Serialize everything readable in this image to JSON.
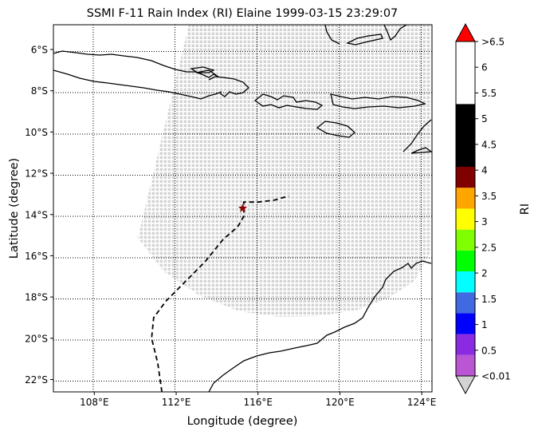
{
  "chart_data": {
    "type": "map",
    "title": "SSMI F-11 Rain Index (RI) Elaine 1999-03-15 23:29:07",
    "xlabel": "Longitude (degree)",
    "ylabel": "Latitude (degree)",
    "xlim": [
      106.0,
      124.5
    ],
    "ylim": [
      -22.6,
      -4.8
    ],
    "xticks": [
      108,
      112,
      116,
      120,
      124
    ],
    "xtick_labels": [
      "108°E",
      "112°E",
      "116°E",
      "120°E",
      "124°E"
    ],
    "yticks": [
      -6,
      -8,
      -10,
      -12,
      -14,
      -16,
      -18,
      -20,
      -22
    ],
    "ytick_labels": [
      "6°S",
      "8°S",
      "10°S",
      "12°S",
      "14°S",
      "16°S",
      "18°S",
      "20°S",
      "22°S"
    ],
    "grid": true,
    "swath_color": "#d3d3d3",
    "storm_track": [
      [
        111.3,
        -22.6
      ],
      [
        111.1,
        -21.2
      ],
      [
        110.8,
        -20.0
      ],
      [
        110.9,
        -19.0
      ],
      [
        111.5,
        -18.2
      ],
      [
        112.4,
        -17.3
      ],
      [
        113.4,
        -16.3
      ],
      [
        114.3,
        -15.2
      ],
      [
        115.0,
        -14.6
      ],
      [
        115.3,
        -14.1
      ],
      [
        115.3,
        -13.4
      ],
      [
        116.0,
        -13.4
      ],
      [
        116.8,
        -13.3
      ],
      [
        117.5,
        -13.1
      ]
    ],
    "storm_position": [
      115.25,
      -13.7
    ],
    "colorbar": {
      "label": "RI",
      "tick_labels": [
        ">6.5",
        "6",
        "5.5",
        "5",
        "4.5",
        "4",
        "3.5",
        "3",
        "2.5",
        "2",
        "1.5",
        "1",
        "0.5",
        "<0.01"
      ],
      "over_color": "#ff0000",
      "under_color": "#d3d3d3",
      "bands_bottom_to_top": [
        {
          "range": [
            0.01,
            0.5
          ],
          "color": "#ba55d3"
        },
        {
          "range": [
            0.5,
            1.0
          ],
          "color": "#8a2be2"
        },
        {
          "range": [
            1.0,
            1.5
          ],
          "color": "#0000ff"
        },
        {
          "range": [
            1.5,
            2.0
          ],
          "color": "#4169e1"
        },
        {
          "range": [
            2.0,
            2.5
          ],
          "color": "#00ffff"
        },
        {
          "range": [
            2.5,
            3.0
          ],
          "color": "#00ff00"
        },
        {
          "range": [
            3.0,
            3.5
          ],
          "color": "#7fff00"
        },
        {
          "range": [
            3.5,
            4.0
          ],
          "color": "#ffff00"
        },
        {
          "range": [
            4.0,
            4.5
          ],
          "color": "#ffa500"
        },
        {
          "range": [
            4.5,
            5.0
          ],
          "color": "#800000"
        },
        {
          "range": [
            5.0,
            6.5
          ],
          "color": "#000000"
        }
      ]
    }
  }
}
